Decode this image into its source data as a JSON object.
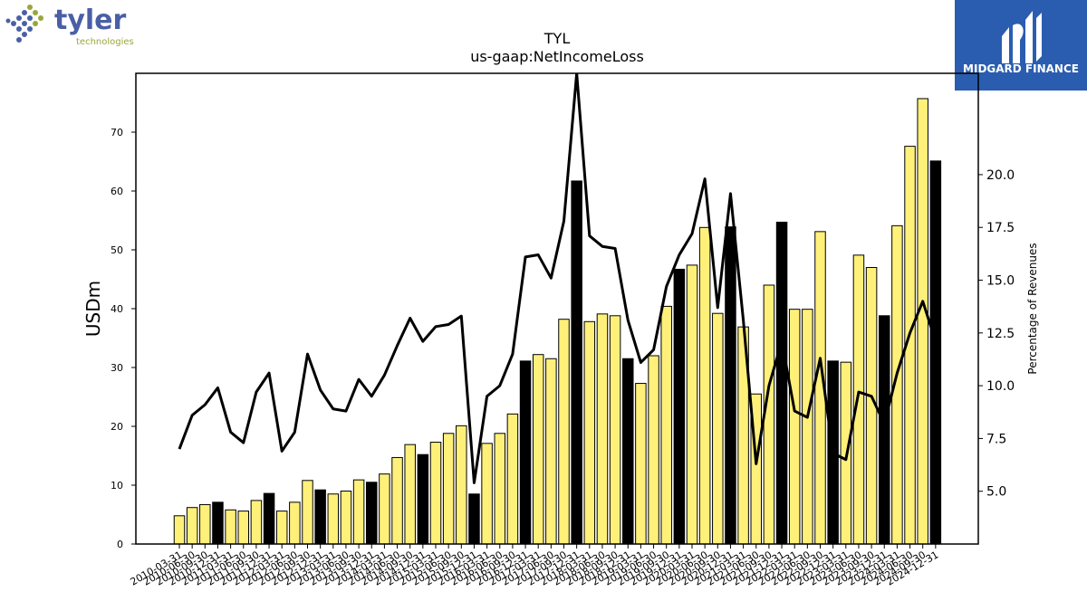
{
  "logos": {
    "left": {
      "name": "tyler",
      "sub": "technologies",
      "icon": "dots-diamond-icon",
      "color": "#4a5fa5",
      "accent": "#9aa63a"
    },
    "right": {
      "name": "MIDGARD FINANCE",
      "icon": "m-emblem-icon",
      "color": "#2a5db0"
    }
  },
  "chart_data": {
    "type": "bar",
    "title": "TYL",
    "subtitle": "us-gaap:NetIncomeLoss",
    "ylabel": "USDm",
    "y2label": "Percentage of Revenues",
    "ylim": [
      0,
      80
    ],
    "y2lim": [
      2.5,
      24.8
    ],
    "yticks": [
      0,
      10,
      20,
      30,
      40,
      50,
      60,
      70
    ],
    "y2ticks": [
      5.0,
      7.5,
      10.0,
      12.5,
      15.0,
      17.5,
      20.0
    ],
    "y2ticklabels": [
      "5.0",
      "7.5",
      "10.0",
      "12.5",
      "15.0",
      "17.5",
      "20.0"
    ],
    "categories": [
      "2010-03-31",
      "2010-06-30",
      "2010-09-30",
      "2010-12-31",
      "2011-03-31",
      "2011-06-30",
      "2011-09-30",
      "2011-12-31",
      "2012-03-31",
      "2012-06-30",
      "2012-09-30",
      "2012-12-31",
      "2013-03-31",
      "2013-06-30",
      "2013-09-30",
      "2013-12-31",
      "2014-03-31",
      "2014-06-30",
      "2014-09-30",
      "2014-12-31",
      "2015-03-31",
      "2015-06-30",
      "2015-09-30",
      "2015-12-31",
      "2016-03-31",
      "2016-06-30",
      "2016-09-30",
      "2016-12-31",
      "2017-03-31",
      "2017-06-30",
      "2017-09-30",
      "2017-12-31",
      "2018-03-31",
      "2018-06-30",
      "2018-09-30",
      "2018-12-31",
      "2019-03-31",
      "2019-06-30",
      "2019-09-30",
      "2019-12-31",
      "2020-03-31",
      "2020-06-30",
      "2020-09-30",
      "2020-12-31",
      "2021-03-31",
      "2021-06-30",
      "2021-09-30",
      "2021-12-31",
      "2022-03-31",
      "2022-06-30",
      "2022-09-30",
      "2022-12-31",
      "2023-03-31",
      "2023-06-30",
      "2023-09-30",
      "2023-12-31",
      "2024-03-31",
      "2024-06-30",
      "2024-09-30",
      "2024-12-31"
    ],
    "values": [
      4.8,
      6.2,
      6.7,
      7.1,
      5.8,
      5.6,
      7.4,
      8.6,
      5.6,
      7.1,
      10.8,
      9.2,
      8.5,
      9.0,
      10.9,
      10.5,
      11.9,
      14.7,
      16.9,
      15.2,
      17.3,
      18.8,
      20.1,
      8.5,
      17.1,
      18.8,
      22.1,
      31.1,
      32.2,
      31.5,
      38.2,
      61.7,
      37.8,
      39.1,
      38.8,
      31.5,
      27.3,
      32.0,
      40.4,
      46.7,
      47.4,
      53.8,
      39.2,
      53.9,
      36.9,
      25.5,
      44.0,
      54.7,
      39.9,
      39.9,
      53.1,
      31.1,
      30.9,
      49.1,
      47.0,
      38.8,
      54.1,
      67.6,
      75.7,
      65.1
    ],
    "highlight": [
      false,
      false,
      false,
      true,
      false,
      false,
      false,
      true,
      false,
      false,
      false,
      true,
      false,
      false,
      false,
      true,
      false,
      false,
      false,
      true,
      false,
      false,
      false,
      true,
      false,
      false,
      false,
      true,
      false,
      false,
      false,
      true,
      false,
      false,
      false,
      true,
      false,
      false,
      false,
      true,
      false,
      false,
      false,
      true,
      false,
      false,
      false,
      true,
      false,
      false,
      false,
      true,
      false,
      false,
      false,
      true,
      false,
      false,
      false,
      true
    ],
    "line_series": {
      "name": "Percentage of Revenues",
      "values": [
        7.0,
        8.6,
        9.1,
        9.9,
        7.8,
        7.3,
        9.7,
        10.6,
        6.9,
        7.8,
        11.5,
        9.8,
        8.9,
        8.8,
        10.3,
        9.5,
        10.5,
        11.9,
        13.2,
        12.1,
        12.8,
        12.9,
        13.3,
        5.4,
        9.5,
        10.0,
        11.5,
        16.1,
        16.2,
        15.1,
        17.8,
        24.8,
        17.1,
        16.6,
        16.5,
        13.1,
        11.1,
        11.7,
        14.7,
        16.2,
        17.2,
        19.8,
        13.7,
        19.1,
        13.1,
        6.3,
        10.0,
        12.1,
        8.8,
        8.5,
        11.3,
        6.8,
        6.5,
        9.7,
        9.5,
        8.2,
        10.6,
        12.5,
        14.0,
        12.1
      ]
    },
    "colors": {
      "bar": "#fff07a",
      "bar_highlight": "#000000",
      "line": "#000000",
      "axis": "#000000"
    },
    "grid": false,
    "legend": "none"
  }
}
